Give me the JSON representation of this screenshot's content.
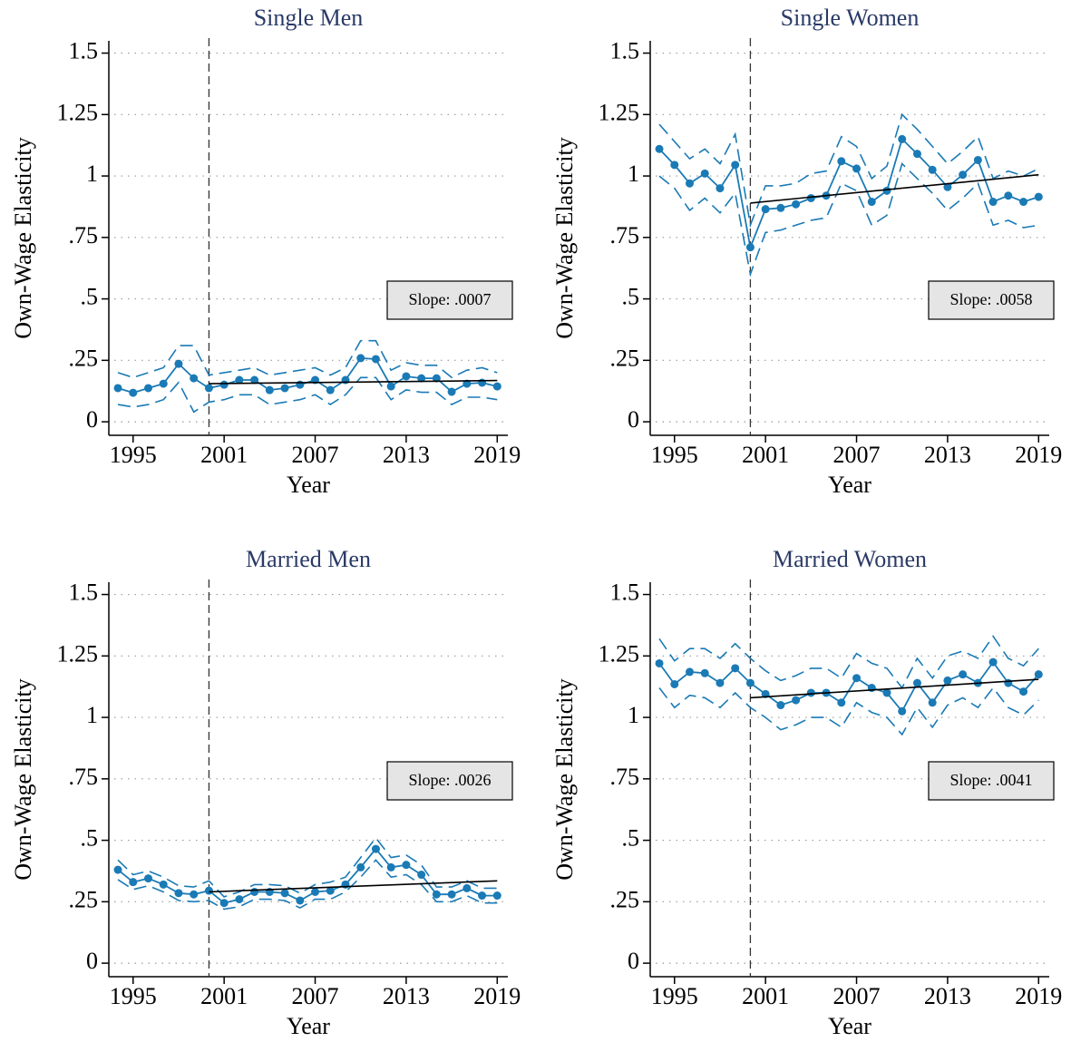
{
  "chart_data": [
    {
      "type": "line",
      "title": "Single Men",
      "xlabel": "Year",
      "ylabel": "Own-Wage Elasticity",
      "annotation": "Slope: .0007",
      "x": [
        1994,
        1995,
        1996,
        1997,
        1998,
        1999,
        2000,
        2001,
        2002,
        2003,
        2004,
        2005,
        2006,
        2007,
        2008,
        2009,
        2010,
        2011,
        2012,
        2013,
        2014,
        2015,
        2016,
        2017,
        2018,
        2019
      ],
      "values": [
        0.137,
        0.118,
        0.137,
        0.155,
        0.236,
        0.177,
        0.137,
        0.151,
        0.17,
        0.17,
        0.129,
        0.137,
        0.151,
        0.17,
        0.129,
        0.17,
        0.259,
        0.255,
        0.144,
        0.185,
        0.177,
        0.177,
        0.122,
        0.155,
        0.159,
        0.144
      ],
      "ci_upper": [
        0.2,
        0.18,
        0.2,
        0.22,
        0.31,
        0.31,
        0.19,
        0.2,
        0.21,
        0.22,
        0.19,
        0.2,
        0.21,
        0.22,
        0.19,
        0.22,
        0.33,
        0.33,
        0.21,
        0.24,
        0.23,
        0.23,
        0.18,
        0.21,
        0.22,
        0.2
      ],
      "ci_lower": [
        0.07,
        0.06,
        0.07,
        0.09,
        0.16,
        0.04,
        0.08,
        0.09,
        0.11,
        0.11,
        0.07,
        0.08,
        0.09,
        0.11,
        0.07,
        0.11,
        0.18,
        0.18,
        0.09,
        0.13,
        0.12,
        0.12,
        0.07,
        0.1,
        0.1,
        0.09
      ],
      "fit_x": [
        2000,
        2019
      ],
      "fit_values": [
        0.155,
        0.168
      ],
      "vline": 2000,
      "color": "#1a7ab5",
      "fit_color": "#000000",
      "xlim": [
        1993.4,
        2019.7
      ],
      "ylim": [
        -0.055,
        1.55
      ],
      "xticks": [
        1995,
        2001,
        2007,
        2013,
        2019
      ],
      "yticks": [
        0,
        {
          "value": 0.25,
          "label": ".25"
        },
        {
          "value": 0.5,
          "label": ".5"
        },
        {
          "value": 0.75,
          "label": ".75"
        },
        1,
        1.25,
        1.5
      ],
      "grid": true
    },
    {
      "type": "line",
      "title": "Single Women",
      "xlabel": "Year",
      "ylabel": "Own-Wage Elasticity",
      "annotation": "Slope: .0058",
      "x": [
        1994,
        1995,
        1996,
        1997,
        1998,
        1999,
        2000,
        2001,
        2002,
        2003,
        2004,
        2005,
        2006,
        2007,
        2008,
        2009,
        2010,
        2011,
        2012,
        2013,
        2014,
        2015,
        2016,
        2017,
        2018,
        2019
      ],
      "values": [
        1.11,
        1.045,
        0.97,
        1.01,
        0.95,
        1.045,
        0.71,
        0.865,
        0.87,
        0.885,
        0.91,
        0.92,
        1.06,
        1.03,
        0.895,
        0.94,
        1.15,
        1.09,
        1.025,
        0.955,
        1.005,
        1.065,
        0.895,
        0.92,
        0.895,
        0.915
      ],
      "ci_upper": [
        1.21,
        1.14,
        1.07,
        1.11,
        1.05,
        1.17,
        0.8,
        0.96,
        0.96,
        0.97,
        1.01,
        1.02,
        1.16,
        1.12,
        0.99,
        1.04,
        1.25,
        1.19,
        1.12,
        1.05,
        1.1,
        1.16,
        0.99,
        1.02,
        1.0,
        1.03
      ],
      "ci_lower": [
        1.0,
        0.95,
        0.86,
        0.91,
        0.85,
        0.93,
        0.6,
        0.77,
        0.78,
        0.8,
        0.82,
        0.83,
        0.97,
        0.94,
        0.8,
        0.84,
        1.05,
        0.99,
        0.93,
        0.86,
        0.91,
        0.97,
        0.8,
        0.82,
        0.79,
        0.8
      ],
      "fit_x": [
        2000,
        2019
      ],
      "fit_values": [
        0.89,
        1.005
      ],
      "vline": 2000,
      "color": "#1a7ab5",
      "fit_color": "#000000",
      "xlim": [
        1993.4,
        2019.7
      ],
      "ylim": [
        -0.055,
        1.55
      ],
      "xticks": [
        1995,
        2001,
        2007,
        2013,
        2019
      ],
      "yticks": [
        0,
        {
          "value": 0.25,
          "label": ".25"
        },
        {
          "value": 0.5,
          "label": ".5"
        },
        {
          "value": 0.75,
          "label": ".75"
        },
        1,
        1.25,
        1.5
      ],
      "grid": true
    },
    {
      "type": "line",
      "title": "Married Men",
      "xlabel": "Year",
      "ylabel": "Own-Wage Elasticity",
      "annotation": "Slope: .0026",
      "x": [
        1994,
        1995,
        1996,
        1997,
        1998,
        1999,
        2000,
        2001,
        2002,
        2003,
        2004,
        2005,
        2006,
        2007,
        2008,
        2009,
        2010,
        2011,
        2012,
        2013,
        2014,
        2015,
        2016,
        2017,
        2018,
        2019
      ],
      "values": [
        0.38,
        0.33,
        0.345,
        0.32,
        0.285,
        0.28,
        0.295,
        0.245,
        0.26,
        0.29,
        0.29,
        0.285,
        0.255,
        0.29,
        0.295,
        0.32,
        0.39,
        0.465,
        0.39,
        0.4,
        0.36,
        0.28,
        0.28,
        0.305,
        0.275,
        0.275
      ],
      "ci_upper": [
        0.42,
        0.36,
        0.375,
        0.35,
        0.315,
        0.31,
        0.335,
        0.27,
        0.29,
        0.32,
        0.32,
        0.315,
        0.285,
        0.32,
        0.33,
        0.35,
        0.43,
        0.51,
        0.43,
        0.44,
        0.4,
        0.31,
        0.31,
        0.335,
        0.305,
        0.305
      ],
      "ci_lower": [
        0.34,
        0.3,
        0.315,
        0.29,
        0.255,
        0.25,
        0.255,
        0.22,
        0.23,
        0.26,
        0.26,
        0.255,
        0.225,
        0.26,
        0.26,
        0.29,
        0.35,
        0.42,
        0.35,
        0.36,
        0.32,
        0.25,
        0.25,
        0.275,
        0.245,
        0.245
      ],
      "fit_x": [
        2000,
        2019
      ],
      "fit_values": [
        0.29,
        0.335
      ],
      "vline": 2000,
      "color": "#1a7ab5",
      "fit_color": "#000000",
      "xlim": [
        1993.4,
        2019.7
      ],
      "ylim": [
        -0.055,
        1.55
      ],
      "xticks": [
        1995,
        2001,
        2007,
        2013,
        2019
      ],
      "yticks": [
        0,
        {
          "value": 0.25,
          "label": ".25"
        },
        {
          "value": 0.5,
          "label": ".5"
        },
        {
          "value": 0.75,
          "label": ".75"
        },
        1,
        1.25,
        1.5
      ],
      "grid": true
    },
    {
      "type": "line",
      "title": "Married Women",
      "xlabel": "Year",
      "ylabel": "Own-Wage Elasticity",
      "annotation": "Slope: .0041",
      "x": [
        1994,
        1995,
        1996,
        1997,
        1998,
        1999,
        2000,
        2001,
        2002,
        2003,
        2004,
        2005,
        2006,
        2007,
        2008,
        2009,
        2010,
        2011,
        2012,
        2013,
        2014,
        2015,
        2016,
        2017,
        2018,
        2019
      ],
      "values": [
        1.22,
        1.135,
        1.185,
        1.18,
        1.14,
        1.2,
        1.14,
        1.095,
        1.05,
        1.07,
        1.1,
        1.1,
        1.06,
        1.16,
        1.12,
        1.1,
        1.025,
        1.14,
        1.06,
        1.15,
        1.175,
        1.14,
        1.225,
        1.14,
        1.105,
        1.175
      ],
      "ci_upper": [
        1.32,
        1.23,
        1.28,
        1.28,
        1.24,
        1.3,
        1.24,
        1.19,
        1.15,
        1.17,
        1.2,
        1.2,
        1.16,
        1.26,
        1.22,
        1.2,
        1.12,
        1.24,
        1.16,
        1.25,
        1.27,
        1.24,
        1.33,
        1.24,
        1.21,
        1.28
      ],
      "ci_lower": [
        1.12,
        1.04,
        1.09,
        1.08,
        1.04,
        1.1,
        1.04,
        1.0,
        0.95,
        0.97,
        1.0,
        1.0,
        0.96,
        1.06,
        1.02,
        1.0,
        0.93,
        1.04,
        0.96,
        1.05,
        1.08,
        1.04,
        1.12,
        1.04,
        1.01,
        1.07
      ],
      "fit_x": [
        2000,
        2019
      ],
      "fit_values": [
        1.08,
        1.155
      ],
      "vline": 2000,
      "color": "#1a7ab5",
      "fit_color": "#000000",
      "xlim": [
        1993.4,
        2019.7
      ],
      "ylim": [
        -0.055,
        1.55
      ],
      "xticks": [
        1995,
        2001,
        2007,
        2013,
        2019
      ],
      "yticks": [
        0,
        {
          "value": 0.25,
          "label": ".25"
        },
        {
          "value": 0.5,
          "label": ".5"
        },
        {
          "value": 0.75,
          "label": ".75"
        },
        1,
        1.25,
        1.5
      ],
      "grid": true
    }
  ]
}
